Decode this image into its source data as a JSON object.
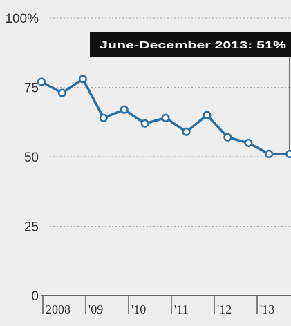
{
  "chart_data": {
    "type": "line",
    "title": "",
    "xlabel": "",
    "ylabel": "",
    "ylim": [
      0,
      100
    ],
    "y_ticks": [
      "100%",
      "75",
      "50",
      "25",
      "0"
    ],
    "y_tick_values": [
      100,
      75,
      50,
      25,
      0
    ],
    "x_ticks": [
      "2008",
      "'09",
      "'10",
      "'11",
      "'12",
      "'13"
    ],
    "grid": true,
    "series": [
      {
        "color": "#2a6fa5",
        "values": [
          77,
          73,
          78,
          64,
          67,
          62,
          64,
          59,
          65,
          57,
          55,
          51,
          51
        ]
      }
    ],
    "annotation": "June-December 2013: 51%"
  }
}
